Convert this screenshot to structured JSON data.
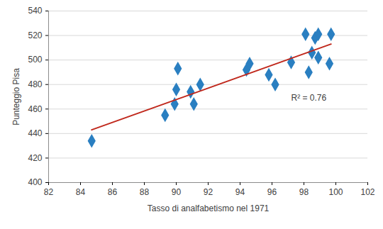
{
  "chart_data": {
    "type": "scatter",
    "x_label": "Tasso di analfabetismo nel 1971",
    "y_label": "Punteggio Pisa",
    "x": [
      84.7,
      89.3,
      89.9,
      90.0,
      90.1,
      90.9,
      91.1,
      91.5,
      94.4,
      94.6,
      95.8,
      96.2,
      97.2,
      98.1,
      98.3,
      98.5,
      98.7,
      98.9,
      98.9,
      99.6,
      99.7
    ],
    "values": [
      434,
      455,
      464,
      476,
      493,
      474,
      464,
      480,
      492,
      497,
      488,
      480,
      498,
      521,
      490,
      506,
      518,
      521,
      502,
      497,
      521
    ],
    "color": "#2a7fc1",
    "marker": "diamond",
    "trend_line": {
      "x": [
        84.7,
        99.7
      ],
      "values": [
        443,
        513
      ],
      "color": "#c0281c"
    },
    "annotations": [
      {
        "text": "R² = 0.76",
        "x": 97.2,
        "y": 469
      }
    ],
    "xlim": [
      82,
      102
    ],
    "xticks": [
      82,
      84,
      86,
      88,
      90,
      92,
      94,
      96,
      98,
      100,
      102
    ],
    "ylim": [
      400,
      540
    ],
    "yticks": [
      400,
      420,
      440,
      460,
      480,
      500,
      520,
      540
    ],
    "grid": true
  }
}
